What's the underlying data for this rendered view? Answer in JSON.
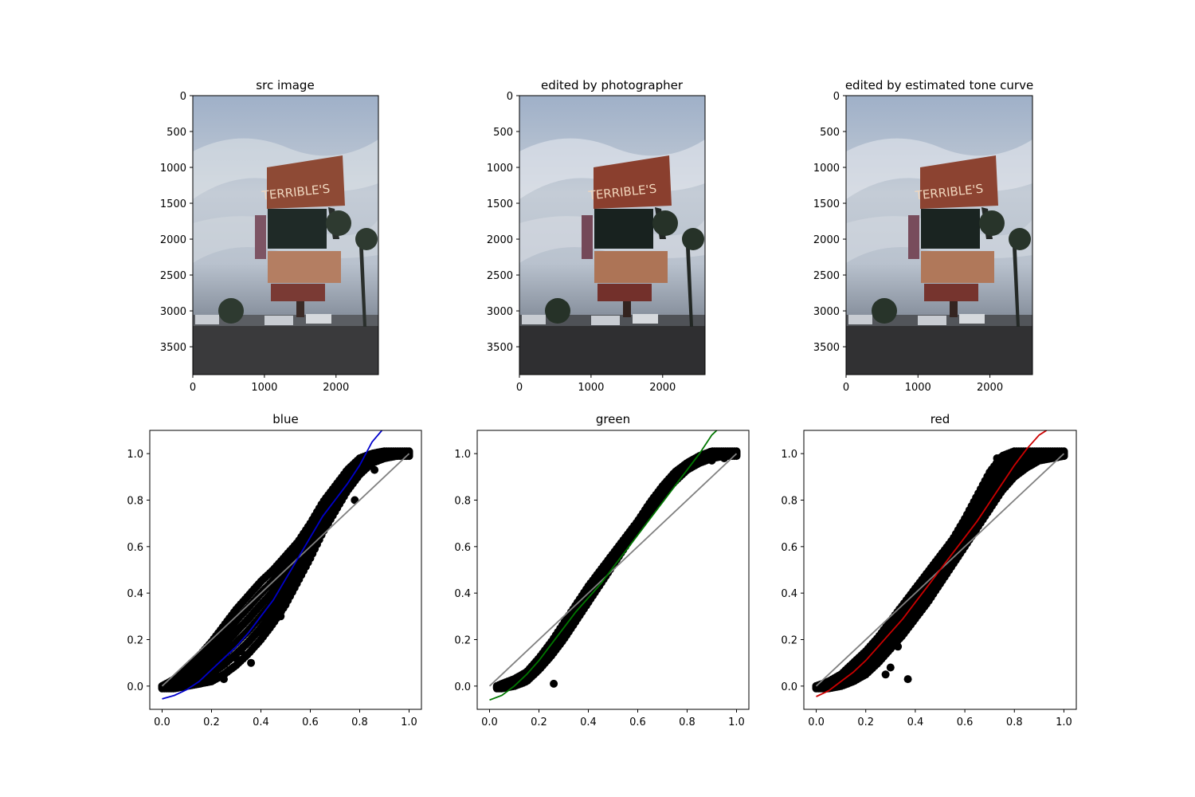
{
  "chart_data": [
    {
      "type": "image",
      "title": "src image",
      "xticks": [
        0,
        1000,
        2000
      ],
      "yticks": [
        0,
        500,
        1000,
        1500,
        2000,
        2500,
        3000,
        3500
      ],
      "xlim": [
        0,
        2592
      ],
      "ylim": [
        3888,
        0
      ]
    },
    {
      "type": "image",
      "title": "edited by photographer",
      "xticks": [
        0,
        1000,
        2000
      ],
      "yticks": [
        0,
        500,
        1000,
        1500,
        2000,
        2500,
        3000,
        3500
      ],
      "xlim": [
        0,
        2592
      ],
      "ylim": [
        3888,
        0
      ]
    },
    {
      "type": "image",
      "title": "edited by estimated tone curve",
      "xticks": [
        0,
        1000,
        2000
      ],
      "yticks": [
        0,
        500,
        1000,
        1500,
        2000,
        2500,
        3000,
        3500
      ],
      "xlim": [
        0,
        2592
      ],
      "ylim": [
        3888,
        0
      ]
    },
    {
      "type": "scatter",
      "title": "blue",
      "xlim": [
        -0.05,
        1.05
      ],
      "ylim": [
        -0.1,
        1.1
      ],
      "xticks": [
        "0.0",
        "0.2",
        "0.4",
        "0.6",
        "0.8",
        "1.0"
      ],
      "yticks": [
        "0.0",
        "0.2",
        "0.4",
        "0.6",
        "0.8",
        "1.0"
      ],
      "fit_color": "#0000cc",
      "identity_color": "#808080",
      "scatter_band": {
        "x": [
          0.0,
          0.05,
          0.1,
          0.15,
          0.2,
          0.25,
          0.3,
          0.35,
          0.4,
          0.45,
          0.5,
          0.55,
          0.6,
          0.65,
          0.7,
          0.75,
          0.8,
          0.85,
          0.9,
          0.95,
          1.0
        ],
        "upper": [
          0.0,
          0.03,
          0.08,
          0.13,
          0.19,
          0.26,
          0.33,
          0.39,
          0.45,
          0.5,
          0.56,
          0.62,
          0.7,
          0.79,
          0.86,
          0.93,
          0.98,
          1.0,
          1.01,
          1.01,
          1.01
        ],
        "lower": [
          -0.01,
          -0.01,
          0.0,
          0.01,
          0.02,
          0.05,
          0.09,
          0.14,
          0.2,
          0.27,
          0.35,
          0.45,
          0.55,
          0.66,
          0.75,
          0.84,
          0.91,
          0.96,
          0.98,
          0.99,
          0.99
        ]
      },
      "outliers": [
        [
          0.25,
          0.03
        ],
        [
          0.3,
          0.12
        ],
        [
          0.32,
          0.15
        ],
        [
          0.36,
          0.1
        ],
        [
          0.42,
          0.25
        ],
        [
          0.48,
          0.3
        ],
        [
          0.52,
          0.44
        ],
        [
          0.78,
          0.8
        ],
        [
          0.86,
          0.93
        ],
        [
          0.9,
          0.98
        ],
        [
          1.0,
          0.99
        ]
      ],
      "fit": {
        "x": [
          0.0,
          0.05,
          0.1,
          0.15,
          0.2,
          0.25,
          0.3,
          0.35,
          0.4,
          0.45,
          0.5,
          0.55,
          0.6,
          0.65,
          0.7,
          0.75,
          0.8,
          0.85,
          0.89
        ],
        "y": [
          -0.055,
          -0.04,
          -0.015,
          0.02,
          0.07,
          0.12,
          0.17,
          0.23,
          0.3,
          0.37,
          0.46,
          0.55,
          0.64,
          0.73,
          0.8,
          0.87,
          0.95,
          1.05,
          1.1
        ]
      }
    },
    {
      "type": "scatter",
      "title": "green",
      "xlim": [
        -0.05,
        1.05
      ],
      "ylim": [
        -0.1,
        1.1
      ],
      "xticks": [
        "0.0",
        "0.2",
        "0.4",
        "0.6",
        "0.8",
        "1.0"
      ],
      "yticks": [
        "0.0",
        "0.2",
        "0.4",
        "0.6",
        "0.8",
        "1.0"
      ],
      "fit_color": "#007700",
      "identity_color": "#808080",
      "scatter_band": {
        "x": [
          0.03,
          0.05,
          0.1,
          0.15,
          0.2,
          0.25,
          0.3,
          0.35,
          0.4,
          0.45,
          0.5,
          0.55,
          0.6,
          0.65,
          0.7,
          0.75,
          0.8,
          0.85,
          0.9,
          0.95,
          1.0
        ],
        "upper": [
          0.0,
          0.01,
          0.03,
          0.06,
          0.12,
          0.19,
          0.27,
          0.35,
          0.43,
          0.5,
          0.57,
          0.64,
          0.71,
          0.79,
          0.86,
          0.92,
          0.96,
          0.99,
          1.01,
          1.01,
          1.01
        ],
        "lower": [
          -0.01,
          -0.01,
          0.0,
          0.02,
          0.07,
          0.13,
          0.2,
          0.28,
          0.36,
          0.44,
          0.52,
          0.6,
          0.68,
          0.75,
          0.82,
          0.88,
          0.93,
          0.96,
          0.98,
          0.99,
          0.99
        ]
      },
      "outliers": [
        [
          0.26,
          0.01
        ],
        [
          0.9,
          0.97
        ],
        [
          0.95,
          0.98
        ],
        [
          1.0,
          1.0
        ]
      ],
      "fit": {
        "x": [
          0.0,
          0.05,
          0.1,
          0.15,
          0.2,
          0.25,
          0.3,
          0.35,
          0.4,
          0.45,
          0.5,
          0.55,
          0.6,
          0.65,
          0.7,
          0.75,
          0.8,
          0.85,
          0.9,
          0.92
        ],
        "y": [
          -0.06,
          -0.04,
          0.0,
          0.05,
          0.11,
          0.18,
          0.25,
          0.32,
          0.38,
          0.44,
          0.51,
          0.58,
          0.65,
          0.72,
          0.79,
          0.86,
          0.93,
          1.0,
          1.08,
          1.1
        ]
      }
    },
    {
      "type": "scatter",
      "title": "red",
      "xlim": [
        -0.05,
        1.05
      ],
      "ylim": [
        -0.1,
        1.1
      ],
      "xticks": [
        "0.0",
        "0.2",
        "0.4",
        "0.6",
        "0.8",
        "1.0"
      ],
      "yticks": [
        "0.0",
        "0.2",
        "0.4",
        "0.6",
        "0.8",
        "1.0"
      ],
      "fit_color": "#cc0000",
      "identity_color": "#808080",
      "scatter_band": {
        "x": [
          0.0,
          0.05,
          0.1,
          0.15,
          0.2,
          0.25,
          0.3,
          0.35,
          0.4,
          0.45,
          0.5,
          0.55,
          0.6,
          0.65,
          0.7,
          0.75,
          0.8,
          0.85,
          0.9,
          0.95,
          1.0
        ],
        "upper": [
          0.0,
          0.02,
          0.05,
          0.1,
          0.15,
          0.21,
          0.28,
          0.35,
          0.42,
          0.49,
          0.56,
          0.63,
          0.72,
          0.82,
          0.92,
          0.99,
          1.01,
          1.01,
          1.01,
          1.01,
          1.01
        ],
        "lower": [
          -0.01,
          -0.01,
          0.0,
          0.02,
          0.05,
          0.1,
          0.16,
          0.22,
          0.29,
          0.36,
          0.44,
          0.52,
          0.6,
          0.68,
          0.76,
          0.84,
          0.9,
          0.94,
          0.97,
          0.98,
          0.99
        ]
      },
      "outliers": [
        [
          0.25,
          0.15
        ],
        [
          0.28,
          0.05
        ],
        [
          0.3,
          0.08
        ],
        [
          0.33,
          0.17
        ],
        [
          0.37,
          0.03
        ],
        [
          0.73,
          0.98
        ],
        [
          0.8,
          0.95
        ],
        [
          1.0,
          0.99
        ]
      ],
      "fit": {
        "x": [
          0.0,
          0.05,
          0.1,
          0.15,
          0.2,
          0.25,
          0.3,
          0.35,
          0.4,
          0.45,
          0.5,
          0.55,
          0.6,
          0.65,
          0.7,
          0.75,
          0.8,
          0.85,
          0.9,
          0.93
        ],
        "y": [
          -0.045,
          -0.02,
          0.02,
          0.06,
          0.11,
          0.17,
          0.23,
          0.29,
          0.36,
          0.43,
          0.5,
          0.57,
          0.64,
          0.71,
          0.79,
          0.87,
          0.95,
          1.02,
          1.08,
          1.1
        ]
      }
    }
  ]
}
